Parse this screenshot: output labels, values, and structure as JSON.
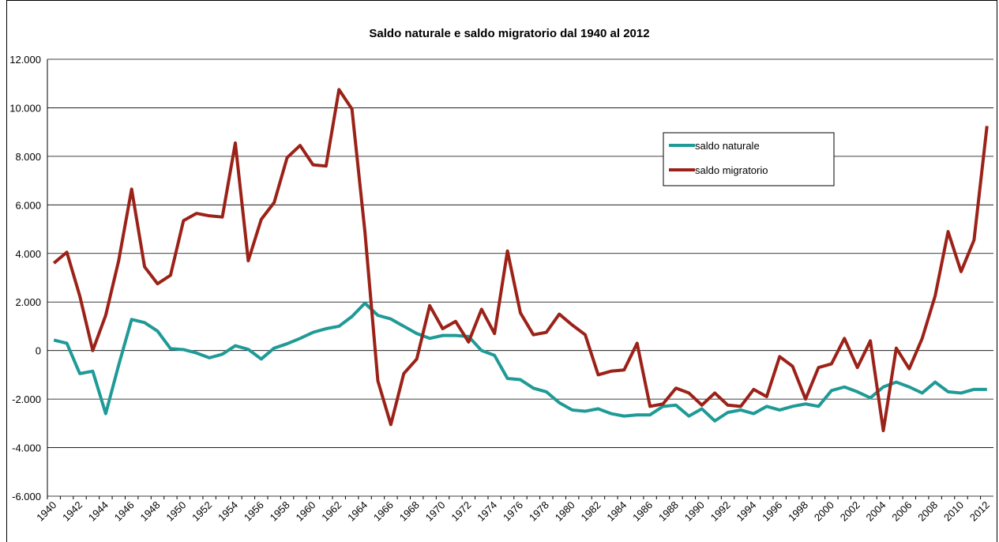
{
  "chart_data": {
    "type": "line",
    "title": "Saldo naturale e saldo migratorio dal 1940 al 2012",
    "categories": [
      "1940",
      null,
      "1942",
      null,
      "1944",
      null,
      "1946",
      null,
      "1948",
      null,
      "1950",
      null,
      "1952",
      null,
      "1954",
      null,
      "1956",
      null,
      "1958",
      null,
      "1960",
      null,
      "1962",
      null,
      "1964",
      null,
      "1966",
      null,
      "1968",
      null,
      "1970",
      null,
      "1972",
      null,
      "1974",
      null,
      "1976",
      null,
      "1978",
      null,
      "1980",
      null,
      "1982",
      null,
      "1984",
      null,
      "1986",
      null,
      "1988",
      null,
      "1990",
      null,
      "1992",
      null,
      "1994",
      null,
      "1996",
      null,
      "1998",
      null,
      "2000",
      null,
      "2002",
      null,
      "2004",
      null,
      "2006",
      null,
      "2008",
      null,
      "2010",
      null,
      "2012"
    ],
    "series": [
      {
        "name": "saldo naturale",
        "color": "#1f9a96",
        "values": [
          430,
          300,
          -950,
          -850,
          -2600,
          -600,
          1280,
          1150,
          800,
          80,
          40,
          -100,
          -300,
          -150,
          200,
          50,
          -350,
          100,
          280,
          500,
          750,
          900,
          1000,
          1400,
          1950,
          1450,
          1300,
          1000,
          700,
          500,
          620,
          620,
          580,
          0,
          -200,
          -1150,
          -1200,
          -1550,
          -1700,
          -2150,
          -2450,
          -2500,
          -2400,
          -2600,
          -2700,
          -2650,
          -2650,
          -2300,
          -2250,
          -2700,
          -2400,
          -2900,
          -2550,
          -2450,
          -2600,
          -2300,
          -2450,
          -2300,
          -2200,
          -2300,
          -1650,
          -1500,
          -1700,
          -1950,
          -1500,
          -1300,
          -1500,
          -1750,
          -1300,
          -1700,
          -1750,
          -1600,
          -1600
        ]
      },
      {
        "name": "saldo migratorio",
        "color": "#9b2218",
        "values": [
          3600,
          4050,
          2250,
          0,
          1450,
          3700,
          6650,
          3450,
          2750,
          3100,
          5350,
          5650,
          5550,
          5500,
          8550,
          3700,
          5400,
          6100,
          7950,
          8450,
          7650,
          7600,
          10750,
          9950,
          4900,
          -1250,
          -3050,
          -950,
          -350,
          1850,
          900,
          1200,
          350,
          1700,
          700,
          4100,
          1550,
          650,
          750,
          1500,
          1050,
          650,
          -1000,
          -850,
          -800,
          300,
          -2300,
          -2200,
          -1550,
          -1750,
          -2250,
          -1750,
          -2250,
          -2300,
          -1600,
          -1900,
          -250,
          -650,
          -2000,
          -700,
          -550,
          500,
          -700,
          400,
          -3300,
          100,
          -750,
          500,
          2250,
          4900,
          3250,
          4550,
          9250
        ]
      }
    ],
    "ylim": [
      -6000,
      12000
    ],
    "yticks": [
      {
        "value": -6000,
        "label": "-6.000"
      },
      {
        "value": -4000,
        "label": "-4.000"
      },
      {
        "value": -2000,
        "label": "-2.000"
      },
      0,
      {
        "value": 2000,
        "label": "2.000"
      },
      {
        "value": 4000,
        "label": "4.000"
      },
      {
        "value": 6000,
        "label": "6.000"
      },
      {
        "value": 8000,
        "label": "8.000"
      },
      {
        "value": 10000,
        "label": "10.000"
      },
      {
        "value": 12000,
        "label": "12.000"
      }
    ],
    "grid": true,
    "legend": "upper-right"
  }
}
